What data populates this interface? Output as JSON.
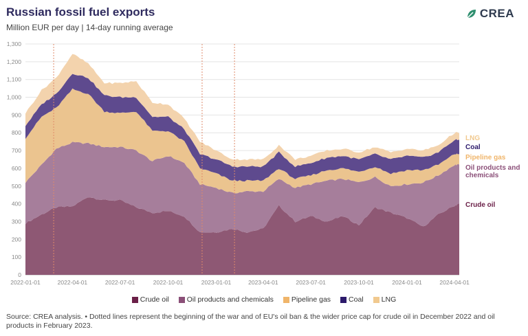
{
  "header": {
    "title": "Russian fossil fuel exports",
    "subtitle": "Million EUR per day | 14-day running average"
  },
  "logo": {
    "text": "CREA",
    "icon": "crea-leaf-icon"
  },
  "footer": {
    "source": "Source: CREA analysis. • Dotted lines represent the beginning of the war and of EU's oil ban & the wider price cap for crude oil in December 2022 and oil products in February 2023."
  },
  "colors": {
    "crude_oil": "#8e5874",
    "oil_products": "#a67e9b",
    "pipeline_gas": "#ebc48f",
    "coal": "#5e4a8e",
    "lng": "#f3d3ad",
    "crude_oil_legend": "#6b2048",
    "oil_products_legend": "#8b4f78",
    "pipeline_gas_legend": "#f0b56a",
    "coal_legend": "#2c1a6b",
    "lng_legend": "#f1c98f"
  },
  "chart_data": {
    "type": "area",
    "stacked": true,
    "ylim": [
      0,
      1300
    ],
    "y_ticks": [
      "0",
      "100",
      "200",
      "300",
      "400",
      "500",
      "600",
      "700",
      "800",
      "900",
      "1,000",
      "1,100",
      "1,200",
      "1,300"
    ],
    "x_tick_labels": [
      "2022-01-01",
      "2022-04-01",
      "2022-07-01",
      "2022-10-01",
      "2023-01-01",
      "2023-04-01",
      "2023-07-01",
      "2023-10-01",
      "2024-01-01",
      "2024-04-01"
    ],
    "x_start": "2022-01-01",
    "x_end": "2024-04-10",
    "vlines": [
      "2022-02-24",
      "2022-12-05",
      "2023-02-05"
    ],
    "grid": true,
    "legend_position": "bottom",
    "x": [
      "2022-01-01",
      "2022-02-01",
      "2022-03-01",
      "2022-04-01",
      "2022-05-01",
      "2022-06-01",
      "2022-07-01",
      "2022-08-01",
      "2022-09-01",
      "2022-10-01",
      "2022-11-01",
      "2022-12-01",
      "2023-01-01",
      "2023-02-01",
      "2023-03-01",
      "2023-04-01",
      "2023-05-01",
      "2023-06-01",
      "2023-07-01",
      "2023-08-01",
      "2023-09-01",
      "2023-10-01",
      "2023-11-01",
      "2023-12-01",
      "2024-01-01",
      "2024-02-01",
      "2024-03-01",
      "2024-04-01",
      "2024-04-10"
    ],
    "series": [
      {
        "name": "Crude oil",
        "key": "crude_oil",
        "values": [
          290,
          340,
          380,
          385,
          440,
          420,
          420,
          380,
          350,
          360,
          330,
          240,
          240,
          260,
          240,
          260,
          390,
          300,
          330,
          300,
          330,
          280,
          380,
          350,
          320,
          270,
          340,
          390,
          400
        ]
      },
      {
        "name": "Oil products and chemicals",
        "key": "oil_products",
        "values": [
          230,
          280,
          330,
          360,
          300,
          300,
          300,
          320,
          290,
          310,
          300,
          270,
          250,
          200,
          230,
          210,
          150,
          190,
          180,
          230,
          210,
          240,
          170,
          150,
          190,
          250,
          220,
          230,
          220
        ]
      },
      {
        "name": "Pipeline gas",
        "key": "pipeline_gas",
        "values": [
          250,
          270,
          230,
          300,
          280,
          200,
          190,
          220,
          170,
          140,
          120,
          90,
          80,
          70,
          60,
          60,
          60,
          50,
          50,
          60,
          60,
          60,
          60,
          70,
          80,
          70,
          60,
          60,
          60
        ]
      },
      {
        "name": "Coal",
        "key": "coal",
        "values": [
          70,
          70,
          80,
          90,
          90,
          90,
          90,
          80,
          80,
          80,
          70,
          80,
          80,
          80,
          80,
          80,
          90,
          70,
          70,
          70,
          70,
          70,
          70,
          80,
          80,
          70,
          70,
          80,
          80
        ]
      },
      {
        "name": "LNG",
        "key": "lng",
        "values": [
          70,
          80,
          90,
          110,
          80,
          70,
          80,
          90,
          80,
          70,
          60,
          70,
          50,
          40,
          40,
          40,
          40,
          40,
          40,
          40,
          40,
          40,
          40,
          40,
          40,
          40,
          40,
          40,
          40
        ]
      }
    ],
    "end_labels": [
      {
        "key": "lng",
        "text": "LNG"
      },
      {
        "key": "coal",
        "text": "Coal"
      },
      {
        "key": "pipeline_gas",
        "text": "Pipeline gas"
      },
      {
        "key": "oil_products",
        "text": "Oil products and chemicals"
      },
      {
        "key": "crude_oil",
        "text": "Crude oil"
      }
    ]
  }
}
